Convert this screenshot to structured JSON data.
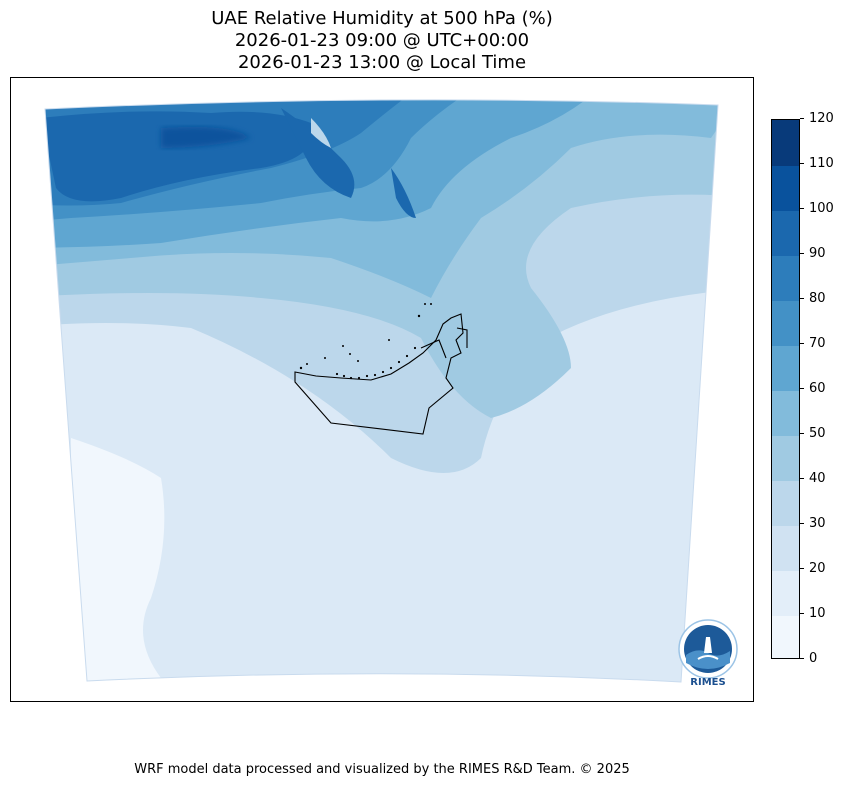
{
  "title": {
    "line1": "UAE Relative Humidity at 500 hPa (%)",
    "line2": "2026-01-23 09:00 @ UTC+00:00",
    "line3": "2026-01-23 13:00 @ Local Time"
  },
  "map": {
    "region": "United Arab Emirates",
    "variable": "Relative Humidity",
    "level": "500 hPa",
    "colormap": "Blues"
  },
  "colorbar": {
    "min": 0,
    "max": 120,
    "step": 10,
    "ticks": [
      "0",
      "10",
      "20",
      "30",
      "40",
      "50",
      "60",
      "70",
      "80",
      "90",
      "100",
      "110",
      "120"
    ],
    "colors": [
      "#f1f7fd",
      "#e3eef9",
      "#d0e2f2",
      "#bcd7eb",
      "#a0cae2",
      "#82bbdb",
      "#5fa6d1",
      "#4391c6",
      "#2d7dbb",
      "#1b68ae",
      "#09529d",
      "#083a7a"
    ]
  },
  "logo": {
    "text": "RIMES",
    "icon": "rimes-logo-icon"
  },
  "footer": "WRF model data processed and visualized by the RIMES R&D Team. © 2025"
}
